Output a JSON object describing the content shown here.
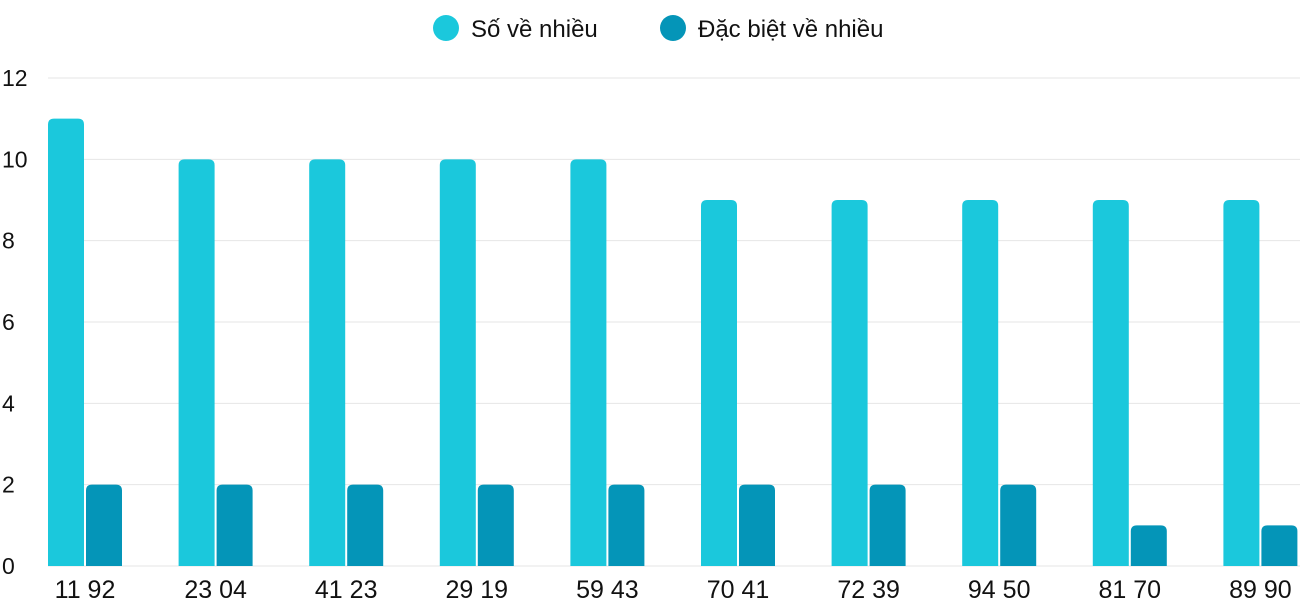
{
  "chart_data": {
    "type": "bar",
    "categories": [
      "11 92",
      "23 04",
      "41 23",
      "29 19",
      "59 43",
      "70 41",
      "72 39",
      "94 50",
      "81 70",
      "89 90"
    ],
    "series": [
      {
        "name": "Số về nhiều",
        "color": "#1bc8dc",
        "values": [
          11,
          10,
          10,
          10,
          10,
          9,
          9,
          9,
          9,
          9
        ]
      },
      {
        "name": "Đặc biệt về nhiều",
        "color": "#0495b8",
        "values": [
          2,
          2,
          2,
          2,
          2,
          2,
          2,
          2,
          1,
          1
        ]
      }
    ],
    "yticks": [
      0,
      2,
      4,
      6,
      8,
      10,
      12
    ],
    "ylim": [
      0,
      12
    ],
    "grid": true,
    "legend_position": "top-center"
  }
}
